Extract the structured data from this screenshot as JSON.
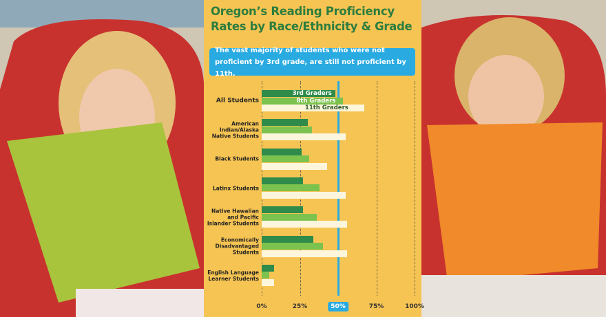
{
  "chart_data": {
    "type": "bar",
    "orientation": "horizontal",
    "title": "Oregon’s Reading Proficiency Rates by Race/Ethnicity & Grade",
    "subtitle": "The vast majority of students who were not proficient by 3rd grade, are still not proficient by 11th.",
    "categories": [
      "All Students",
      "American Indian/Alaska Native Students",
      "Black Students",
      "Latinx Students",
      "Native Hawaiian and Pacific Islander Students",
      "Economically Disadvantaged Students",
      "English Language Learner Students"
    ],
    "series": [
      {
        "name": "3rd Graders",
        "color": "#2e8b4a",
        "values": [
          48,
          30,
          26,
          27,
          27,
          34,
          8
        ]
      },
      {
        "name": "8th Graders",
        "color": "#7cc24e",
        "values": [
          53,
          33,
          31,
          38,
          36,
          40,
          5
        ]
      },
      {
        "name": "11th Graders",
        "color": "#fdf6dc",
        "values": [
          67,
          55,
          43,
          55,
          56,
          56,
          8
        ]
      }
    ],
    "xlim": [
      0,
      100
    ],
    "xticks": [
      {
        "value": 0,
        "label": "0%"
      },
      {
        "value": 25,
        "label": "25%"
      },
      {
        "value": 50,
        "label": "50%"
      },
      {
        "value": 75,
        "label": "75%"
      },
      {
        "value": 100,
        "label": "100%"
      }
    ],
    "highlight_tick": 50,
    "highlight_color": "#29abe2",
    "grid": true
  }
}
